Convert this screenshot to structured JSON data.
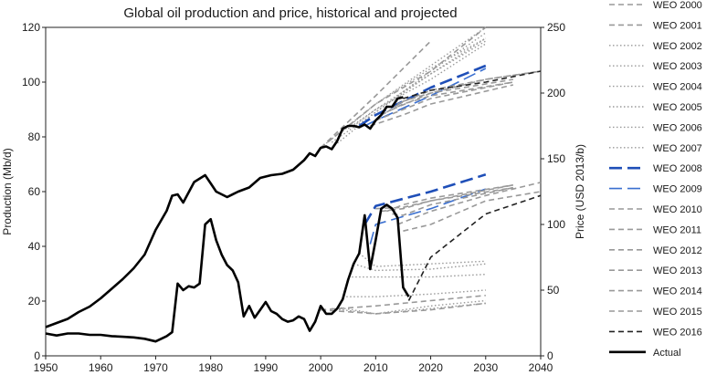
{
  "chart_data": {
    "type": "line",
    "title": "Global oil production and price, historical and projected",
    "xlabel": "",
    "ylabel_left": "Production (Mb/d)",
    "ylabel_right": "Price (USD 2013/b)",
    "xlim": [
      1950,
      2040
    ],
    "ylim_left": [
      0,
      120
    ],
    "ylim_right": [
      0,
      250
    ],
    "x_ticks": [
      "1950",
      "1960",
      "1970",
      "1980",
      "1990",
      "2000",
      "2010",
      "2020",
      "2030",
      "2040"
    ],
    "y_left_ticks": [
      "0",
      "20",
      "40",
      "60",
      "80",
      "100",
      "120"
    ],
    "y_right_ticks": [
      "0",
      "50",
      "100",
      "150",
      "200",
      "250"
    ],
    "grid": false,
    "legend_position": "right",
    "legend": [
      {
        "name": "WEO 2000",
        "color": "#999999",
        "dash": "dashed",
        "width": 1.6
      },
      {
        "name": "WEO 2001",
        "color": "#999999",
        "dash": "dashed",
        "width": 1.6
      },
      {
        "name": "WEO 2002",
        "color": "#999999",
        "dash": "dotted",
        "width": 1.4
      },
      {
        "name": "WEO 2003",
        "color": "#999999",
        "dash": "dotted",
        "width": 1.4
      },
      {
        "name": "WEO 2004",
        "color": "#999999",
        "dash": "dotted",
        "width": 1.4
      },
      {
        "name": "WEO 2005",
        "color": "#999999",
        "dash": "dotted",
        "width": 1.4
      },
      {
        "name": "WEO 2006",
        "color": "#999999",
        "dash": "dotted",
        "width": 1.4
      },
      {
        "name": "WEO 2007",
        "color": "#999999",
        "dash": "dotted",
        "width": 1.4
      },
      {
        "name": "WEO 2008",
        "color": "#1f4fb8",
        "dash": "longdash",
        "width": 2.6
      },
      {
        "name": "WEO 2009",
        "color": "#3a6fd0",
        "dash": "longdash",
        "width": 1.6
      },
      {
        "name": "WEO 2010",
        "color": "#999999",
        "dash": "dashed",
        "width": 1.6
      },
      {
        "name": "WEO 2011",
        "color": "#999999",
        "dash": "dashed",
        "width": 1.6
      },
      {
        "name": "WEO 2012",
        "color": "#999999",
        "dash": "dashed",
        "width": 1.6
      },
      {
        "name": "WEO 2013",
        "color": "#999999",
        "dash": "dashed",
        "width": 1.6
      },
      {
        "name": "WEO 2014",
        "color": "#999999",
        "dash": "dashed",
        "width": 1.6
      },
      {
        "name": "WEO 2015",
        "color": "#999999",
        "dash": "dashed",
        "width": 1.6
      },
      {
        "name": "WEO 2016",
        "color": "#222222",
        "dash": "dashed",
        "width": 1.6
      },
      {
        "name": "Actual",
        "color": "#000000",
        "dash": "solid",
        "width": 2.6
      }
    ],
    "actual_production": {
      "name": "Actual",
      "axis": "left",
      "x": [
        1950,
        1952,
        1954,
        1956,
        1958,
        1960,
        1962,
        1964,
        1966,
        1968,
        1970,
        1972,
        1973,
        1974,
        1975,
        1977,
        1979,
        1980,
        1981,
        1983,
        1985,
        1987,
        1989,
        1991,
        1993,
        1995,
        1997,
        1998,
        1999,
        2000,
        2001,
        2002,
        2003,
        2004,
        2005,
        2006,
        2007,
        2008,
        2009,
        2010,
        2011,
        2012,
        2013,
        2014,
        2015
      ],
      "y": [
        10.5,
        12,
        13.5,
        16,
        18,
        21,
        24.5,
        28,
        32,
        37,
        46,
        53,
        58.5,
        59,
        56,
        63.5,
        66,
        63,
        60,
        58,
        60,
        61.5,
        65,
        66,
        66.5,
        68,
        71.5,
        74,
        73,
        76,
        76.5,
        75.5,
        78.5,
        83,
        84,
        84,
        83.5,
        84.5,
        83,
        86,
        88,
        91,
        91,
        94,
        94.5
      ]
    },
    "actual_price": {
      "name": "Actual",
      "axis": "right",
      "x": [
        1950,
        1952,
        1954,
        1956,
        1958,
        1960,
        1962,
        1964,
        1966,
        1968,
        1970,
        1971,
        1972,
        1973,
        1974,
        1975,
        1976,
        1977,
        1978,
        1979,
        1980,
        1981,
        1982,
        1983,
        1984,
        1985,
        1986,
        1987,
        1988,
        1989,
        1990,
        1991,
        1992,
        1993,
        1994,
        1995,
        1996,
        1997,
        1998,
        1999,
        2000,
        2001,
        2002,
        2003,
        2004,
        2005,
        2006,
        2007,
        2008,
        2009,
        2010,
        2011,
        2012,
        2013,
        2014,
        2015,
        2016
      ],
      "y": [
        17,
        15.5,
        17,
        17,
        16,
        16,
        15,
        14.5,
        14,
        13,
        11,
        13,
        15,
        18,
        55,
        50,
        53,
        52,
        55,
        100,
        104,
        88,
        77,
        69,
        65,
        56,
        30,
        38,
        29,
        35,
        41,
        34,
        32,
        28,
        26,
        27,
        30,
        28,
        19,
        26,
        38,
        32,
        32,
        36,
        43,
        58,
        70,
        78,
        107,
        66,
        88,
        112,
        115,
        112,
        105,
        52,
        45
      ]
    },
    "projections": [
      {
        "name": "WEO 2000",
        "axis": "left",
        "x": [
          2000,
          2010,
          2020
        ],
        "y": [
          76,
          95,
          115
        ]
      },
      {
        "name": "WEO 2001",
        "axis": "left",
        "x": [
          2000,
          2010,
          2020,
          2030
        ],
        "y": [
          76,
          92,
          104,
          120
        ]
      },
      {
        "name": "WEO 2002",
        "axis": "left",
        "x": [
          2000,
          2010,
          2020,
          2030
        ],
        "y": [
          76,
          92,
          106,
          120
        ]
      },
      {
        "name": "WEO 2003",
        "axis": "left",
        "x": [
          2002,
          2010,
          2020,
          2030
        ],
        "y": [
          76,
          89,
          104,
          118
        ]
      },
      {
        "name": "WEO 2004",
        "axis": "left",
        "x": [
          2002,
          2010,
          2020,
          2030
        ],
        "y": [
          78,
          89,
          103,
          115
        ]
      },
      {
        "name": "WEO 2005",
        "axis": "left",
        "x": [
          2004,
          2010,
          2020,
          2030
        ],
        "y": [
          82,
          92,
          105,
          116
        ]
      },
      {
        "name": "WEO 2006",
        "axis": "left",
        "x": [
          2005,
          2010,
          2020,
          2030
        ],
        "y": [
          83,
          90,
          103,
          116
        ]
      },
      {
        "name": "WEO 2007",
        "axis": "left",
        "x": [
          2006,
          2010,
          2020,
          2030
        ],
        "y": [
          84,
          90,
          101,
          114
        ]
      },
      {
        "name": "WEO 2008",
        "axis": "left",
        "x": [
          2007,
          2010,
          2020,
          2030
        ],
        "y": [
          84,
          88,
          98,
          106
        ]
      },
      {
        "name": "WEO 2009",
        "axis": "left",
        "x": [
          2008,
          2010,
          2020,
          2030
        ],
        "y": [
          84,
          86,
          95,
          105
        ]
      },
      {
        "name": "WEO 2010",
        "axis": "left",
        "x": [
          2009,
          2015,
          2020,
          2035
        ],
        "y": [
          84,
          88,
          92,
          99
        ]
      },
      {
        "name": "WEO 2011",
        "axis": "left",
        "x": [
          2010,
          2015,
          2020,
          2035
        ],
        "y": [
          86,
          90,
          94,
          100
        ]
      },
      {
        "name": "WEO 2012",
        "axis": "left",
        "x": [
          2011,
          2015,
          2020,
          2035
        ],
        "y": [
          88,
          92,
          95,
          100
        ]
      },
      {
        "name": "WEO 2013",
        "axis": "left",
        "x": [
          2012,
          2015,
          2020,
          2035
        ],
        "y": [
          89,
          93,
          96,
          101
        ]
      },
      {
        "name": "WEO 2014",
        "axis": "left",
        "x": [
          2013,
          2020,
          2030,
          2040
        ],
        "y": [
          90,
          96,
          101,
          104
        ]
      },
      {
        "name": "WEO 2015",
        "axis": "left",
        "x": [
          2014,
          2020,
          2030,
          2040
        ],
        "y": [
          92,
          97,
          101,
          104
        ]
      },
      {
        "name": "WEO 2016",
        "axis": "left",
        "x": [
          2015,
          2020,
          2030,
          2040
        ],
        "y": [
          94,
          97,
          100,
          104
        ]
      },
      {
        "name": "WEO 2000",
        "axis": "right",
        "x": [
          2000,
          2010,
          2020,
          2030
        ],
        "y": [
          35,
          38,
          42,
          46
        ]
      },
      {
        "name": "WEO 2001",
        "axis": "right",
        "x": [
          2000,
          2010,
          2020,
          2030
        ],
        "y": [
          35,
          32,
          35,
          40
        ]
      },
      {
        "name": "WEO 2002",
        "axis": "right",
        "x": [
          2002,
          2010,
          2020,
          2030
        ],
        "y": [
          36,
          32,
          36,
          40
        ]
      },
      {
        "name": "WEO 2003",
        "axis": "right",
        "x": [
          2003,
          2010,
          2020,
          2030
        ],
        "y": [
          37,
          32,
          38,
          42
        ]
      },
      {
        "name": "WEO 2004",
        "axis": "right",
        "x": [
          2004,
          2010,
          2020,
          2030
        ],
        "y": [
          45,
          45,
          47,
          50
        ]
      },
      {
        "name": "WEO 2005",
        "axis": "right",
        "x": [
          2005,
          2010,
          2020,
          2030
        ],
        "y": [
          60,
          60,
          60,
          62
        ]
      },
      {
        "name": "WEO 2006",
        "axis": "right",
        "x": [
          2006,
          2010,
          2020,
          2030
        ],
        "y": [
          70,
          65,
          66,
          70
        ]
      },
      {
        "name": "WEO 2007",
        "axis": "right",
        "x": [
          2007,
          2010,
          2020,
          2030
        ],
        "y": [
          78,
          68,
          70,
          72
        ]
      },
      {
        "name": "WEO 2008",
        "axis": "right",
        "x": [
          2008,
          2010,
          2020,
          2030
        ],
        "y": [
          100,
          114,
          125,
          138
        ]
      },
      {
        "name": "WEO 2009",
        "axis": "right",
        "x": [
          2009,
          2010,
          2020,
          2030
        ],
        "y": [
          85,
          100,
          112,
          127
        ]
      },
      {
        "name": "WEO 2010",
        "axis": "right",
        "x": [
          2010,
          2015,
          2020,
          2035
        ],
        "y": [
          112,
          113,
          118,
          128
        ]
      },
      {
        "name": "WEO 2011",
        "axis": "right",
        "x": [
          2011,
          2015,
          2020,
          2035
        ],
        "y": [
          110,
          112,
          118,
          130
        ]
      },
      {
        "name": "WEO 2012",
        "axis": "right",
        "x": [
          2012,
          2015,
          2020,
          2035
        ],
        "y": [
          110,
          115,
          120,
          130
        ]
      },
      {
        "name": "WEO 2013",
        "axis": "right",
        "x": [
          2013,
          2015,
          2020,
          2035
        ],
        "y": [
          108,
          107,
          115,
          128
        ]
      },
      {
        "name": "WEO 2014",
        "axis": "right",
        "x": [
          2014,
          2020,
          2030,
          2040
        ],
        "y": [
          100,
          110,
          122,
          132
        ]
      },
      {
        "name": "WEO 2015",
        "axis": "right",
        "x": [
          2015,
          2020,
          2030,
          2040
        ],
        "y": [
          95,
          100,
          118,
          125
        ]
      },
      {
        "name": "WEO 2016",
        "axis": "right",
        "x": [
          2016,
          2020,
          2030,
          2040
        ],
        "y": [
          42,
          75,
          108,
          122
        ]
      }
    ]
  }
}
